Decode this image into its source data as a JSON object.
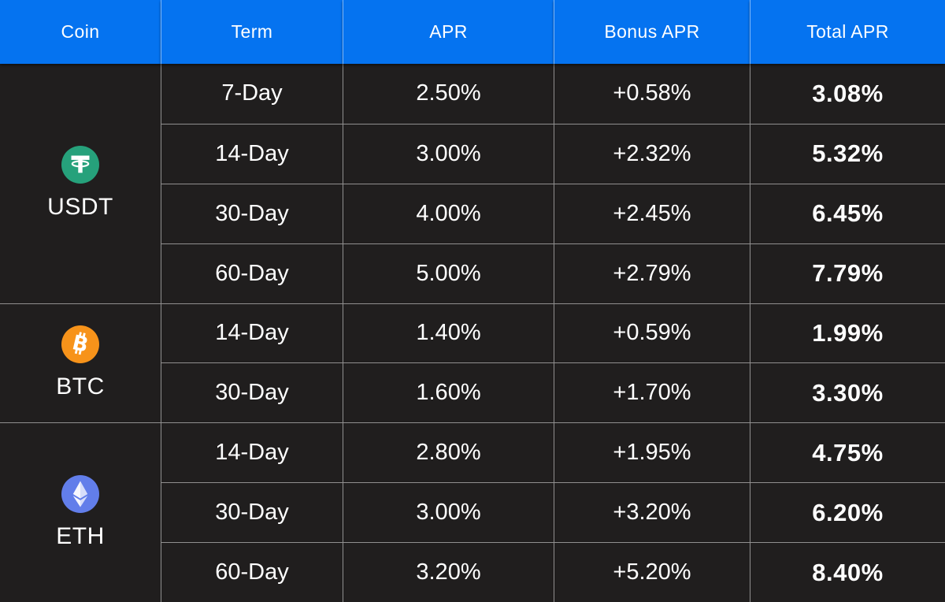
{
  "colors": {
    "header_bg": "#0573F0",
    "row_bg": "#201E1E",
    "grid_line": "rgba(255,255,255,0.5)",
    "text": "#FFFFFF",
    "tether_green": "#26A17B",
    "bitcoin_orange": "#F7931A",
    "ethereum_purple": "#627EEA"
  },
  "table": {
    "columns": [
      "Coin",
      "Term",
      "APR",
      "Bonus APR",
      "Total APR"
    ],
    "groups": [
      {
        "coin": "USDT",
        "icon": "tether-icon",
        "rows": [
          {
            "term": "7-Day",
            "apr": "2.50%",
            "bonus_apr": "+0.58%",
            "total_apr": "3.08%"
          },
          {
            "term": "14-Day",
            "apr": "3.00%",
            "bonus_apr": "+2.32%",
            "total_apr": "5.32%"
          },
          {
            "term": "30-Day",
            "apr": "4.00%",
            "bonus_apr": "+2.45%",
            "total_apr": "6.45%"
          },
          {
            "term": "60-Day",
            "apr": "5.00%",
            "bonus_apr": "+2.79%",
            "total_apr": "7.79%"
          }
        ]
      },
      {
        "coin": "BTC",
        "icon": "bitcoin-icon",
        "rows": [
          {
            "term": "14-Day",
            "apr": "1.40%",
            "bonus_apr": "+0.59%",
            "total_apr": "1.99%"
          },
          {
            "term": "30-Day",
            "apr": "1.60%",
            "bonus_apr": "+1.70%",
            "total_apr": "3.30%"
          }
        ]
      },
      {
        "coin": "ETH",
        "icon": "ethereum-icon",
        "rows": [
          {
            "term": "14-Day",
            "apr": "2.80%",
            "bonus_apr": "+1.95%",
            "total_apr": "4.75%"
          },
          {
            "term": "30-Day",
            "apr": "3.00%",
            "bonus_apr": "+3.20%",
            "total_apr": "6.20%"
          },
          {
            "term": "60-Day",
            "apr": "3.20%",
            "bonus_apr": "+5.20%",
            "total_apr": "8.40%"
          }
        ]
      }
    ]
  },
  "chart_data": {
    "type": "table",
    "title": "",
    "columns": [
      "Coin",
      "Term",
      "APR",
      "Bonus APR",
      "Total APR"
    ],
    "rows": [
      [
        "USDT",
        "7-Day",
        "2.50%",
        "+0.58%",
        "3.08%"
      ],
      [
        "USDT",
        "14-Day",
        "3.00%",
        "+2.32%",
        "5.32%"
      ],
      [
        "USDT",
        "30-Day",
        "4.00%",
        "+2.45%",
        "6.45%"
      ],
      [
        "USDT",
        "60-Day",
        "5.00%",
        "+2.79%",
        "7.79%"
      ],
      [
        "BTC",
        "14-Day",
        "1.40%",
        "+0.59%",
        "1.99%"
      ],
      [
        "BTC",
        "30-Day",
        "1.60%",
        "+1.70%",
        "3.30%"
      ],
      [
        "ETH",
        "14-Day",
        "2.80%",
        "+1.95%",
        "4.75%"
      ],
      [
        "ETH",
        "30-Day",
        "3.00%",
        "+3.20%",
        "6.20%"
      ],
      [
        "ETH",
        "60-Day",
        "3.20%",
        "+5.20%",
        "8.40%"
      ]
    ]
  }
}
